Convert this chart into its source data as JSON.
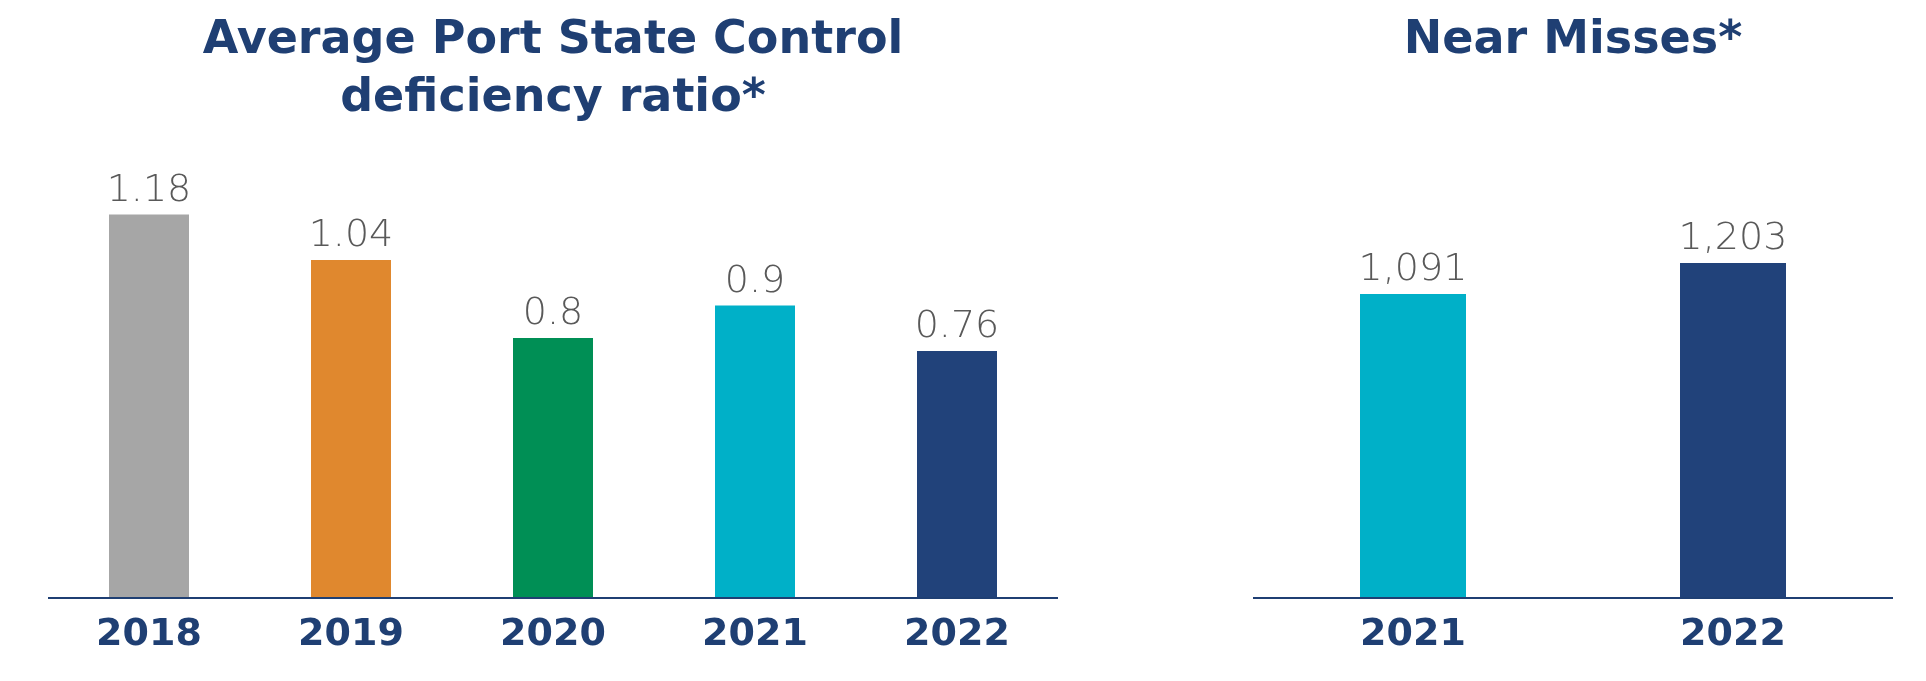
{
  "chart_data": [
    {
      "type": "bar",
      "title": "Average Port State Control deficiency ratio*",
      "categories": [
        "2018",
        "2019",
        "2020",
        "2021",
        "2022"
      ],
      "values": [
        1.18,
        1.04,
        0.8,
        0.9,
        0.76
      ],
      "colors": [
        "#a6a6a6",
        "#e0882e",
        "#008f55",
        "#00b0c8",
        "#21427a"
      ],
      "data_labels": true,
      "grid": false,
      "legend": false
    },
    {
      "type": "bar",
      "title": "Near Misses*",
      "categories": [
        "2021",
        "2022"
      ],
      "values": [
        1091,
        1203
      ],
      "value_labels": [
        "1,091",
        "1,203"
      ],
      "colors": [
        "#00b0c8",
        "#21427a"
      ],
      "grid": false,
      "legend": false
    }
  ]
}
